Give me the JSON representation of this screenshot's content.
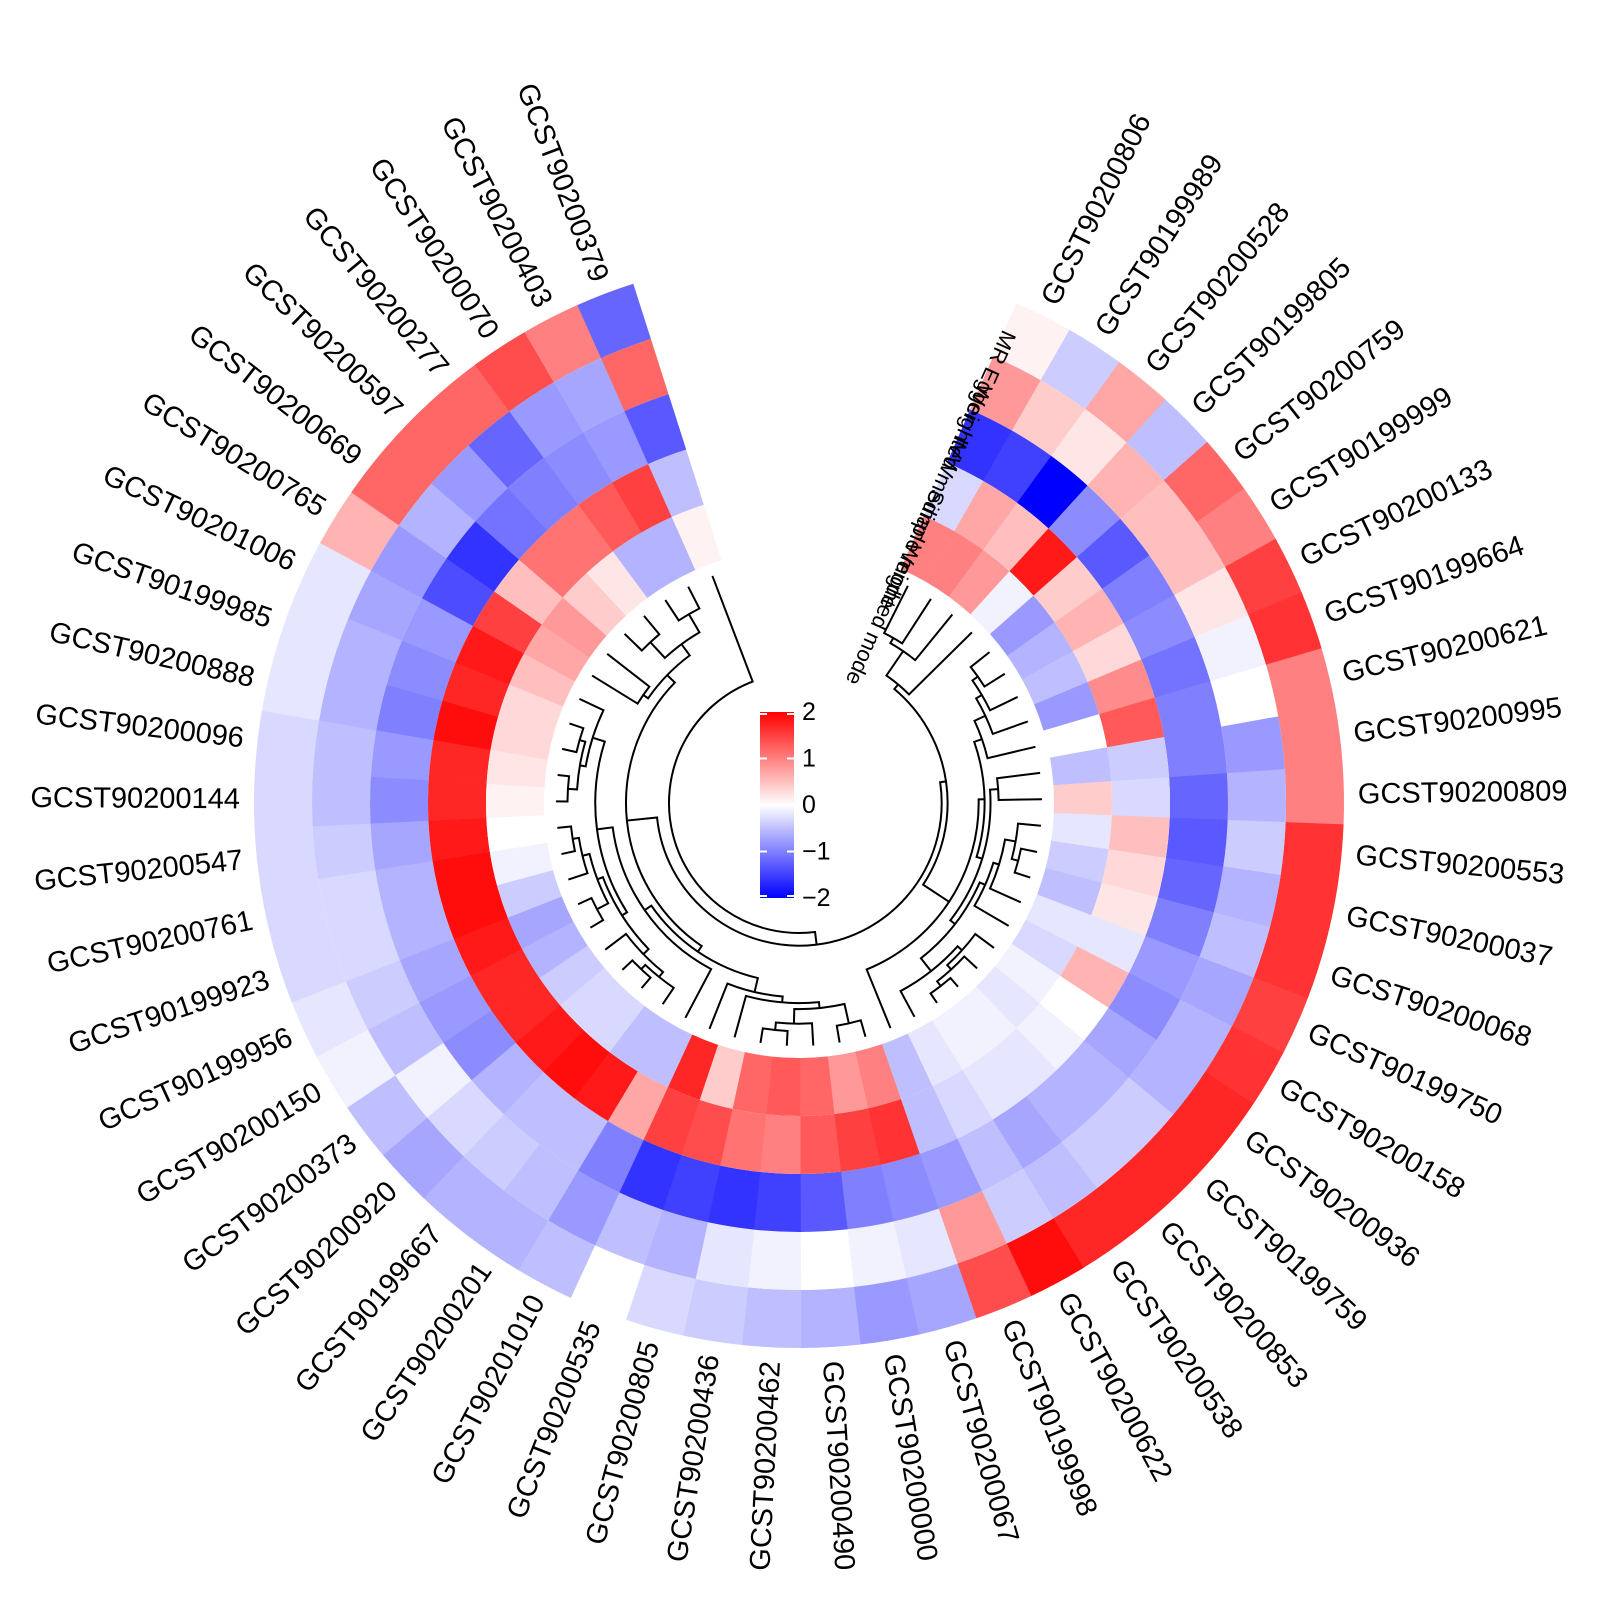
{
  "chart_data": {
    "type": "heatmap",
    "layout": "circular",
    "title": "",
    "tracks_outer_to_inner": [
      "MR Egger",
      "Weighted median",
      "IVW",
      "Simple mode",
      "Weighted mode"
    ],
    "legend": {
      "ticks": [
        2,
        1,
        0,
        -1,
        -2
      ],
      "range": [
        -2,
        2
      ],
      "colors": {
        "low": "#0000ff",
        "mid": "#ffffff",
        "high": "#ff0000"
      },
      "placement": "center"
    },
    "dendrogram": true,
    "rows": [
      {
        "id": "GCST90200806",
        "values": [
          0.1,
          0.8,
          -1.6,
          -0.3,
          1.0
        ]
      },
      {
        "id": "GCST90199989",
        "values": [
          -0.4,
          0.4,
          -1.5,
          0.7,
          1.0
        ]
      },
      {
        "id": "GCST90200528",
        "values": [
          0.7,
          0.2,
          -2.0,
          0.5,
          0.8
        ]
      },
      {
        "id": "GCST90199805",
        "values": [
          -0.5,
          0.6,
          -0.9,
          1.8,
          -0.1
        ]
      },
      {
        "id": "GCST90200759",
        "values": [
          1.2,
          0.5,
          -1.3,
          0.4,
          -0.8
        ]
      },
      {
        "id": "GCST90199999",
        "values": [
          1.0,
          0.5,
          -1.0,
          0.6,
          -0.6
        ]
      },
      {
        "id": "GCST90200133",
        "values": [
          1.5,
          0.2,
          -0.9,
          0.3,
          -0.5
        ]
      },
      {
        "id": "GCST90199664",
        "values": [
          1.6,
          -0.1,
          -1.1,
          0.9,
          -0.8
        ]
      },
      {
        "id": "GCST90200621",
        "values": [
          1.0,
          0.0,
          -1.0,
          1.3,
          0.0
        ]
      },
      {
        "id": "GCST90200995",
        "values": [
          1.0,
          -0.8,
          -1.0,
          -0.4,
          -0.5
        ]
      },
      {
        "id": "GCST90200809",
        "values": [
          1.0,
          -0.6,
          -1.2,
          -0.3,
          0.4
        ]
      },
      {
        "id": "GCST90200553",
        "values": [
          1.6,
          -0.4,
          -1.3,
          0.5,
          -0.2
        ]
      },
      {
        "id": "GCST90200037",
        "values": [
          1.6,
          -0.6,
          -1.2,
          0.3,
          -0.4
        ]
      },
      {
        "id": "GCST90200068",
        "values": [
          1.6,
          -0.5,
          -1.0,
          0.2,
          -0.5
        ]
      },
      {
        "id": "GCST90199750",
        "values": [
          1.5,
          -0.7,
          -0.8,
          -0.2,
          -0.2
        ]
      },
      {
        "id": "GCST90200158",
        "values": [
          1.6,
          -0.6,
          -0.9,
          0.6,
          -0.3
        ]
      },
      {
        "id": "GCST90200936",
        "values": [
          1.7,
          -0.6,
          -0.7,
          0.0,
          -0.1
        ]
      },
      {
        "id": "GCST90199759",
        "values": [
          1.7,
          -0.4,
          -0.6,
          -0.1,
          -0.2
        ]
      },
      {
        "id": "GCST90200853",
        "values": [
          1.7,
          -0.4,
          -0.6,
          -0.2,
          -0.1
        ]
      },
      {
        "id": "GCST90200538",
        "values": [
          1.7,
          -0.5,
          -0.7,
          -0.2,
          -0.1
        ]
      },
      {
        "id": "GCST90200622",
        "values": [
          1.9,
          -0.4,
          -0.5,
          -0.3,
          -0.2
        ]
      },
      {
        "id": "GCST90199998",
        "values": [
          1.4,
          0.8,
          -0.8,
          -0.5,
          -0.5
        ]
      },
      {
        "id": "GCST90200067",
        "values": [
          -0.7,
          -0.2,
          -0.9,
          1.6,
          1.0
        ]
      },
      {
        "id": "GCST90200000",
        "values": [
          -0.8,
          -0.1,
          -1.0,
          1.5,
          0.8
        ]
      },
      {
        "id": "GCST90200490",
        "values": [
          -0.6,
          0.0,
          -1.3,
          1.3,
          1.2
        ]
      },
      {
        "id": "GCST90200462",
        "values": [
          -0.5,
          -0.1,
          -1.5,
          1.0,
          1.3
        ]
      },
      {
        "id": "GCST90200436",
        "values": [
          -0.4,
          -0.2,
          -1.6,
          1.1,
          1.2
        ]
      },
      {
        "id": "GCST90200805",
        "values": [
          -0.3,
          -0.6,
          -1.5,
          1.4,
          0.4
        ]
      },
      {
        "id": "GCST90200535",
        "values": [
          0.0,
          -0.5,
          -1.6,
          1.5,
          1.7
        ]
      },
      {
        "id": "GCST90201010",
        "values": [
          -0.5,
          -0.8,
          -1.0,
          0.7,
          -0.5
        ]
      },
      {
        "id": "GCST90200201",
        "values": [
          -0.6,
          -0.5,
          -0.5,
          1.8,
          -0.5
        ]
      },
      {
        "id": "GCST90199667",
        "values": [
          -0.6,
          -0.4,
          -0.5,
          1.9,
          -0.3
        ]
      },
      {
        "id": "GCST90200920",
        "values": [
          -0.7,
          -0.3,
          -0.6,
          1.8,
          -0.3
        ]
      },
      {
        "id": "GCST90200373",
        "values": [
          -0.5,
          -0.1,
          -0.9,
          1.7,
          -0.4
        ]
      },
      {
        "id": "GCST90200150",
        "values": [
          -0.1,
          -0.5,
          -0.8,
          1.7,
          -0.6
        ]
      },
      {
        "id": "GCST90199956",
        "values": [
          -0.2,
          -0.4,
          -0.7,
          1.8,
          -0.7
        ]
      },
      {
        "id": "GCST90199923",
        "values": [
          -0.3,
          -0.3,
          -0.6,
          1.9,
          -0.4
        ]
      },
      {
        "id": "GCST90200761",
        "values": [
          -0.3,
          -0.3,
          -0.6,
          1.9,
          -0.1
        ]
      },
      {
        "id": "GCST90200547",
        "values": [
          -0.3,
          -0.4,
          -0.7,
          1.8,
          0.0
        ]
      },
      {
        "id": "GCST90200144",
        "values": [
          -0.3,
          -0.5,
          -0.9,
          1.7,
          0.1
        ]
      },
      {
        "id": "GCST90200096",
        "values": [
          -0.3,
          -0.5,
          -0.8,
          1.7,
          0.2
        ]
      },
      {
        "id": "GCST90200888",
        "values": [
          -0.2,
          -0.6,
          -1.0,
          1.9,
          0.3
        ]
      },
      {
        "id": "GCST90199985",
        "values": [
          -0.2,
          -0.6,
          -0.9,
          1.7,
          0.3
        ]
      },
      {
        "id": "GCST90201006",
        "values": [
          -0.2,
          -0.7,
          -0.8,
          1.8,
          0.5
        ]
      },
      {
        "id": "GCST90200765",
        "values": [
          0.6,
          -0.8,
          -1.4,
          1.5,
          0.7
        ]
      },
      {
        "id": "GCST90200669",
        "values": [
          1.2,
          -0.6,
          -1.6,
          0.5,
          0.8
        ]
      },
      {
        "id": "GCST90200597",
        "values": [
          1.2,
          -0.8,
          -1.1,
          1.1,
          0.4
        ]
      },
      {
        "id": "GCST90200277",
        "values": [
          1.2,
          -1.2,
          -1.0,
          1.1,
          0.2
        ]
      },
      {
        "id": "GCST90200070",
        "values": [
          1.4,
          -0.8,
          -0.9,
          1.3,
          -0.6
        ]
      },
      {
        "id": "GCST90200403",
        "values": [
          1.0,
          -0.7,
          -0.8,
          1.5,
          -0.6
        ]
      },
      {
        "id": "GCST90200379",
        "values": [
          -1.2,
          1.2,
          -1.3,
          -0.5,
          0.1
        ]
      }
    ]
  }
}
